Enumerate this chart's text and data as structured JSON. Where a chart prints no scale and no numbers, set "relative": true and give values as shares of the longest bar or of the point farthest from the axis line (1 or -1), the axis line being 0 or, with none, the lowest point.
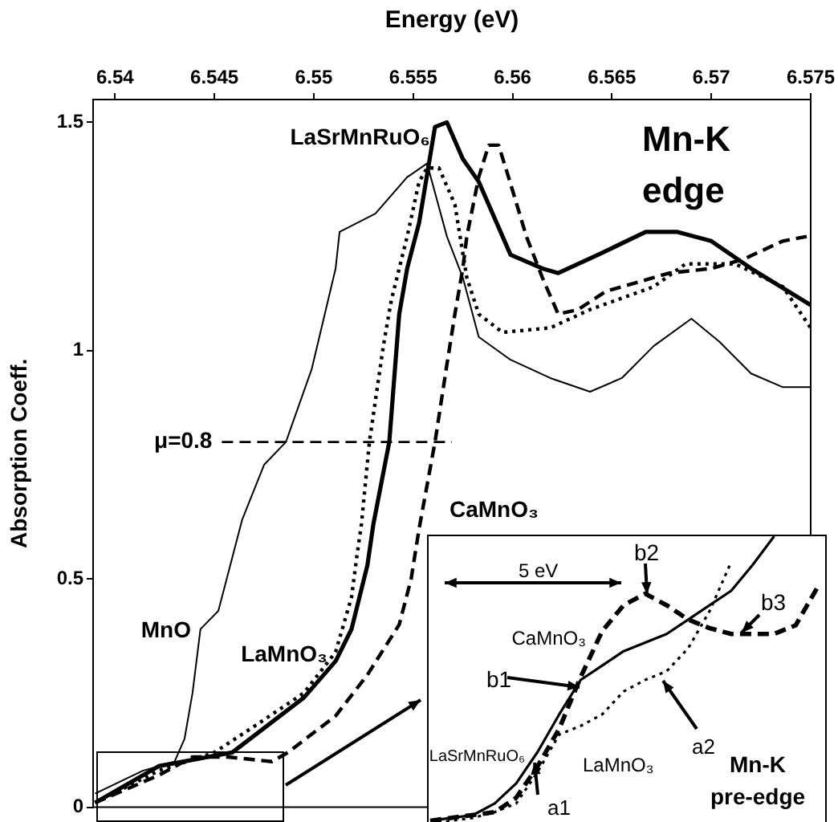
{
  "chart_data": [
    {
      "type": "line",
      "xlabel": "Energy (eV)",
      "ylabel": "Absorption Coeff.",
      "xlim": [
        6.5389,
        6.575
      ],
      "xticks": [
        6.54,
        6.545,
        6.55,
        6.555,
        6.56,
        6.565,
        6.57,
        6.575
      ],
      "ylim": [
        0,
        1.55
      ],
      "yticks": [
        0,
        0.5,
        1,
        1.5
      ],
      "legend": false,
      "marker": "none",
      "annotations": [
        "Mn-K edge"
      ],
      "ref_lines": [
        {
          "axis": "y",
          "value": 0.8,
          "label": "μ=0.8",
          "line_style": "dashed"
        }
      ],
      "series": [
        {
          "name": "LaSrMnRuO₆",
          "color": "#000000",
          "line_style": "solid",
          "x": [
            6.539,
            6.5422,
            6.5459,
            6.5471,
            6.5495,
            6.5511,
            6.5519,
            6.5527,
            6.553,
            6.5538,
            6.5543,
            6.5547,
            6.5553,
            6.5561,
            6.5567,
            6.5575,
            6.5583,
            6.5599,
            6.5615,
            6.5623,
            6.5643,
            6.5667,
            6.5683,
            6.57,
            6.572,
            6.575
          ],
          "values": [
            0.01,
            0.09,
            0.12,
            0.16,
            0.24,
            0.32,
            0.39,
            0.53,
            0.62,
            0.8,
            1.08,
            1.18,
            1.28,
            1.49,
            1.5,
            1.42,
            1.37,
            1.21,
            1.18,
            1.17,
            1.21,
            1.26,
            1.26,
            1.24,
            1.18,
            1.1
          ]
        },
        {
          "name": "CaMnO₃",
          "color": "#000000",
          "line_style": "dashed",
          "x": [
            6.539,
            6.5422,
            6.5439,
            6.5457,
            6.5479,
            6.5487,
            6.5511,
            6.5527,
            6.5543,
            6.5549,
            6.5553,
            6.5561,
            6.5567,
            6.5571,
            6.5575,
            6.5577,
            6.5583,
            6.5588,
            6.5593,
            6.5598,
            6.5607,
            6.5615,
            6.5623,
            6.5633,
            6.5647,
            6.5679,
            6.57,
            6.5716,
            6.5736,
            6.5748
          ],
          "values": [
            0.01,
            0.07,
            0.11,
            0.11,
            0.1,
            0.12,
            0.2,
            0.29,
            0.4,
            0.5,
            0.61,
            0.8,
            0.97,
            1.08,
            1.18,
            1.25,
            1.38,
            1.45,
            1.45,
            1.38,
            1.25,
            1.16,
            1.08,
            1.09,
            1.13,
            1.17,
            1.18,
            1.2,
            1.24,
            1.25
          ]
        },
        {
          "name": "LaMnO₃",
          "color": "#000000",
          "line_style": "dotted",
          "x": [
            6.539,
            6.5422,
            6.545,
            6.5471,
            6.5495,
            6.5511,
            6.5519,
            6.5522,
            6.5524,
            6.5528,
            6.5535,
            6.5539,
            6.5547,
            6.5553,
            6.5557,
            6.5563,
            6.5571,
            6.5577,
            6.5583,
            6.5595,
            6.5619,
            6.5639,
            6.5671,
            6.5687,
            6.5712,
            6.5736,
            6.575
          ],
          "values": [
            0.01,
            0.08,
            0.12,
            0.18,
            0.25,
            0.34,
            0.46,
            0.56,
            0.62,
            0.8,
            1.01,
            1.11,
            1.25,
            1.37,
            1.4,
            1.4,
            1.32,
            1.16,
            1.08,
            1.04,
            1.05,
            1.09,
            1.14,
            1.19,
            1.19,
            1.14,
            1.05
          ]
        },
        {
          "name": "MnO",
          "color": "#000000",
          "line_style": "solid",
          "x": [
            6.539,
            6.5402,
            6.5414,
            6.5422,
            6.543,
            6.5435,
            6.5439,
            6.5443,
            6.5452,
            6.5464,
            6.5475,
            6.5486,
            6.5499,
            6.5511,
            6.5513,
            6.5531,
            6.5547,
            6.5557,
            6.5567,
            6.5575,
            6.5583,
            6.5599,
            6.5619,
            6.5639,
            6.5655,
            6.5671,
            6.569,
            6.5704,
            6.572,
            6.5736,
            6.575
          ],
          "values": [
            0.03,
            0.055,
            0.08,
            0.09,
            0.1,
            0.15,
            0.25,
            0.39,
            0.43,
            0.63,
            0.75,
            0.8,
            0.96,
            1.18,
            1.26,
            1.3,
            1.38,
            1.41,
            1.25,
            1.16,
            1.03,
            0.98,
            0.94,
            0.91,
            0.94,
            1.01,
            1.07,
            1.02,
            0.95,
            0.92,
            0.92
          ]
        }
      ]
    },
    {
      "type": "line",
      "relative": true,
      "legend": false,
      "marker": "none",
      "categories": [
        null,
        null,
        null,
        null,
        null,
        null,
        null,
        null,
        null,
        null,
        null,
        null,
        null,
        null,
        null,
        null,
        null,
        null,
        null
      ],
      "annotations": [
        "5 eV",
        "b1",
        "b2",
        "b3",
        "a1",
        "a2",
        "Mn-K pre-edge"
      ],
      "series": [
        {
          "name": "CaMnO₃",
          "color": "#000000",
          "line_style": "dashed",
          "values": [
            0.01,
            0.02,
            0.03,
            0.04,
            0.09,
            0.2,
            0.33,
            0.51,
            0.67,
            0.76,
            0.8,
            0.76,
            0.71,
            0.68,
            0.66,
            0.66,
            0.66,
            0.69,
            0.82
          ]
        },
        {
          "name": "LaSrMnRuO₆",
          "color": "#000000",
          "line_style": "solid",
          "values": [
            0.01,
            0.02,
            0.03,
            0.07,
            0.14,
            0.25,
            0.38,
            0.5,
            0.55,
            0.6,
            0.63,
            0.66,
            0.71,
            0.76,
            0.81,
            0.9,
            1,
            null,
            null
          ]
        },
        {
          "name": "LaMnO₃",
          "color": "#000000",
          "line_style": "dotted",
          "values": [
            0,
            0.01,
            0.02,
            0.04,
            0.07,
            0.18,
            0.31,
            0.34,
            0.38,
            0.46,
            0.5,
            0.53,
            0.61,
            0.74,
            0.91,
            null,
            null,
            null,
            null
          ]
        }
      ]
    }
  ]
}
